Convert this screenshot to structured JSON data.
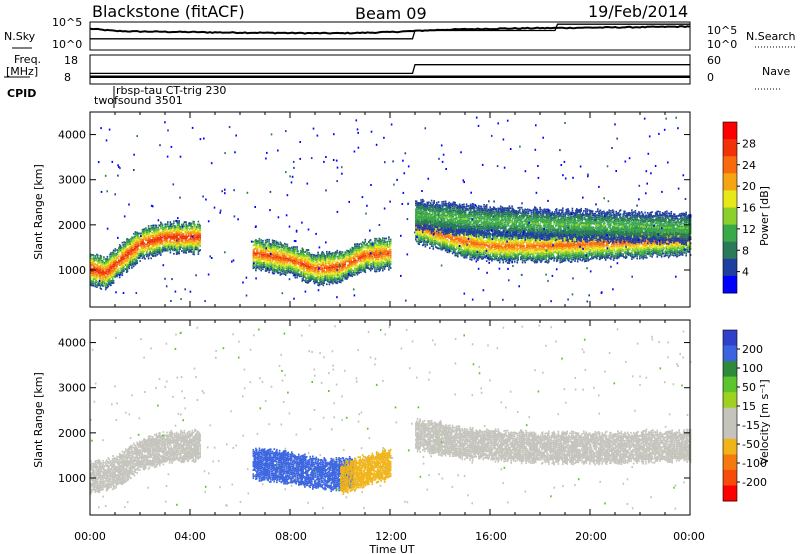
{
  "header": {
    "title_left": "Blackstone (fitACF)",
    "title_center": "Beam 09",
    "title_right": "19/Feb/2014"
  },
  "noise_panel": {
    "left_label": "N.Sky",
    "right_label": "N.Search",
    "left_ticks": [
      "10^5",
      "10^0"
    ],
    "right_ticks": [
      "10^5",
      "10^0"
    ]
  },
  "freq_panel": {
    "left_label_1": "Freq.",
    "left_label_2": "[MHz]",
    "left_ticks": [
      "18",
      "8"
    ],
    "right_label": "Nave",
    "right_ticks": [
      "60",
      "0"
    ]
  },
  "cpid": {
    "label": "CPID",
    "mode_1": "rbsp-tau CT-trig 230",
    "mode_2": "twofsound 3501"
  },
  "x_axis": {
    "label": "Time UT",
    "ticks": [
      "00:00",
      "04:00",
      "08:00",
      "12:00",
      "16:00",
      "20:00",
      "00:00"
    ]
  },
  "colors": {
    "power_scale": [
      "#0000ff",
      "#1e3fa0",
      "#2a7a5a",
      "#3aa94a",
      "#8cd02c",
      "#e8e818",
      "#f5a514",
      "#f86a0c",
      "#f03206",
      "#ff0000"
    ],
    "velocity_scale": [
      "#3040c8",
      "#3a64e0",
      "#2e8a3a",
      "#5cc42c",
      "#9ed21e",
      "#c4c4bc",
      "#c4c4bc",
      "#f0b418",
      "#f47a10",
      "#f84a0a",
      "#ff0000"
    ],
    "ground_scatter": "#c4c4bc"
  },
  "chart_data": [
    {
      "type": "line",
      "panel": "noise",
      "x_label": "",
      "ylabel_left": "N.Sky",
      "ylabel_right": "N.Search",
      "yscale": "log",
      "ylim": [
        1,
        100000
      ],
      "series": [
        {
          "name": "N.Sky",
          "x": [
            0.0,
            0.5,
            1.0,
            2.0,
            3.0,
            4.0,
            5.0,
            6.0,
            7.0,
            8.0,
            9.0,
            10.0,
            11.0,
            12.0,
            13.0,
            14.0,
            16.0,
            18.0,
            20.0,
            22.0,
            24.0
          ],
          "values": [
            6300,
            4000,
            2500,
            2000,
            1800,
            1600,
            1400,
            1300,
            1200,
            1100,
            1000,
            1000,
            1200,
            1600,
            2500,
            4000,
            6300,
            8000,
            10000,
            12000,
            16000
          ]
        },
        {
          "name": "N.Search",
          "x": [
            0.0,
            12.9,
            13.0,
            18.6,
            18.6,
            24.0
          ],
          "values": [
            100,
            100,
            3000,
            3000,
            40000,
            40000
          ]
        }
      ]
    },
    {
      "type": "line",
      "panel": "frequency",
      "ylabel_left": "Freq. [MHz]",
      "ylabel_right": "Nave",
      "ylim_left": [
        8,
        18
      ],
      "ylim_right": [
        0,
        60
      ],
      "series": [
        {
          "name": "Freq.",
          "x": [
            0.0,
            24.0
          ],
          "values": [
            10.5,
            10.5
          ]
        },
        {
          "name": "Nave",
          "x": [
            0.0,
            12.9,
            13.0,
            24.0
          ],
          "values": [
            22,
            22,
            40,
            40
          ]
        }
      ]
    },
    {
      "type": "heatmap",
      "panel": "power",
      "xlabel": "",
      "ylabel": "Slant Range [km]",
      "xlim": [
        0,
        24
      ],
      "ylim": [
        180,
        4500
      ],
      "yticks": [
        1000,
        2000,
        3000,
        4000
      ],
      "colorbar": {
        "label": "Power [dB]",
        "ticks": [
          4,
          8,
          12,
          16,
          20,
          24,
          28
        ],
        "range": [
          0,
          30
        ]
      },
      "bands": [
        {
          "x": [
            0.0,
            0.6,
            1.2,
            2.0,
            3.0,
            4.0,
            4.4
          ],
          "y": [
            1000,
            900,
            1200,
            1550,
            1700,
            1700,
            1700
          ],
          "value": 28
        },
        {
          "x": [
            6.5,
            8.0,
            9.0,
            10.0,
            11.0,
            12.0
          ],
          "y": [
            1350,
            1200,
            1000,
            1050,
            1300,
            1350
          ],
          "value": 26
        },
        {
          "x": [
            13.0,
            14.0,
            15.0,
            16.0,
            18.0,
            20.0,
            22.0,
            24.0
          ],
          "y": [
            1950,
            1750,
            1600,
            1500,
            1500,
            1550,
            1600,
            1650
          ],
          "value": 24
        },
        {
          "x": [
            13.0,
            15.0,
            18.0,
            21.0,
            24.0
          ],
          "y": [
            2200,
            2100,
            2000,
            1950,
            1900
          ],
          "value": 12
        }
      ]
    },
    {
      "type": "heatmap",
      "panel": "velocity",
      "xlabel": "Time UT",
      "ylabel": "Slant Range [km]",
      "xlim": [
        0,
        24
      ],
      "ylim": [
        180,
        4500
      ],
      "yticks": [
        1000,
        2000,
        3000,
        4000
      ],
      "colorbar": {
        "label": "Velocity [m s⁻¹]",
        "ticks": [
          200,
          100,
          50,
          15,
          -15,
          -50,
          -100,
          -200
        ],
        "range": [
          -250,
          250
        ]
      },
      "bands": [
        {
          "x": [
            0.0,
            1.0,
            2.0,
            3.0,
            4.0,
            4.4
          ],
          "y": [
            1000,
            1100,
            1500,
            1650,
            1700,
            1700
          ],
          "value": 0
        },
        {
          "x": [
            6.5,
            7.5,
            8.5,
            9.5,
            10.5
          ],
          "y": [
            1300,
            1250,
            1150,
            1050,
            1100
          ],
          "value": 180
        },
        {
          "x": [
            10.0,
            11.0,
            12.0
          ],
          "y": [
            950,
            1150,
            1300
          ],
          "value": -60
        },
        {
          "x": [
            13.0,
            15.0,
            18.0,
            21.0,
            24.0
          ],
          "y": [
            1950,
            1750,
            1650,
            1650,
            1700
          ],
          "value": 0
        }
      ]
    }
  ]
}
